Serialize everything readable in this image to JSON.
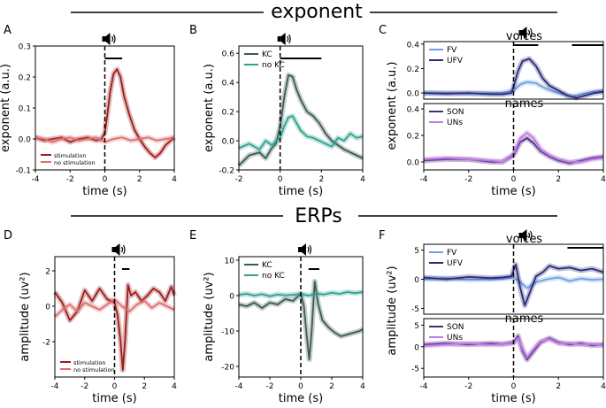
{
  "sections": {
    "top": "exponent",
    "bottom": "ERPs"
  },
  "chart_data": [
    {
      "panel": "A",
      "type": "line",
      "xlabel": "time (s)",
      "ylabel": "exponent (a.u.)",
      "xlim": [
        -4,
        4
      ],
      "ylim": [
        -0.1,
        0.3
      ],
      "xticks": [
        "-4",
        "-2",
        "0",
        "2",
        "4"
      ],
      "yticks": [
        "-0.1",
        "0.0",
        "0.1",
        "0.2",
        "0.3"
      ],
      "legend_position": "lower-left",
      "sig_bar": [
        0.0,
        1.0
      ],
      "series": [
        {
          "name": "stimulation",
          "color": "#9b1b1b",
          "x": [
            -4,
            -3.5,
            -3,
            -2.5,
            -2,
            -1.5,
            -1,
            -0.5,
            -0.2,
            0,
            0.15,
            0.3,
            0.5,
            0.7,
            0.9,
            1.1,
            1.4,
            1.7,
            2,
            2.3,
            2.6,
            2.9,
            3.2,
            3.5,
            3.8,
            4
          ],
          "y": [
            0.005,
            -0.005,
            0.0,
            0.005,
            -0.01,
            0.0,
            0.005,
            -0.005,
            0.0,
            0.02,
            0.08,
            0.15,
            0.21,
            0.225,
            0.2,
            0.14,
            0.08,
            0.03,
            0.0,
            -0.025,
            -0.045,
            -0.06,
            -0.045,
            -0.02,
            -0.005,
            0.005
          ]
        },
        {
          "name": "no stimulation",
          "color": "#de6e6e",
          "x": [
            -4,
            -3.5,
            -3,
            -2.5,
            -2,
            -1.5,
            -1,
            -0.5,
            0,
            0.5,
            1,
            1.5,
            2,
            2.5,
            3,
            3.5,
            4
          ],
          "y": [
            0.005,
            0.0,
            -0.01,
            0.0,
            0.005,
            -0.005,
            0.0,
            0.005,
            -0.01,
            0.0,
            0.005,
            -0.005,
            0.0,
            0.005,
            -0.005,
            0.0,
            0.005
          ]
        }
      ]
    },
    {
      "panel": "B",
      "type": "line",
      "xlabel": "time (s)",
      "ylabel": "exponent (a.u.)",
      "xlim": [
        -2,
        4
      ],
      "ylim": [
        -0.2,
        0.65
      ],
      "xticks": [
        "-2",
        "0",
        "2",
        "4"
      ],
      "yticks": [
        "-0.2",
        "0.0",
        "0.2",
        "0.4",
        "0.6"
      ],
      "legend_position": "top-left",
      "sig_bar": [
        0.0,
        2.0
      ],
      "series": [
        {
          "name": "KC",
          "color": "#3b5a52",
          "x": [
            -2,
            -1.5,
            -1,
            -0.7,
            -0.4,
            -0.2,
            0,
            0.2,
            0.4,
            0.6,
            0.8,
            1.0,
            1.3,
            1.6,
            1.9,
            2.2,
            2.5,
            2.8,
            3.1,
            3.4,
            3.7,
            4
          ],
          "y": [
            -0.17,
            -0.1,
            -0.08,
            -0.12,
            -0.05,
            -0.02,
            0.1,
            0.3,
            0.45,
            0.44,
            0.35,
            0.28,
            0.2,
            0.17,
            0.12,
            0.05,
            0.0,
            -0.03,
            -0.06,
            -0.08,
            -0.1,
            -0.12
          ]
        },
        {
          "name": "no KC",
          "color": "#2fa190",
          "x": [
            -2,
            -1.5,
            -1,
            -0.7,
            -0.4,
            -0.2,
            0,
            0.2,
            0.4,
            0.6,
            0.8,
            1.0,
            1.3,
            1.6,
            1.9,
            2.2,
            2.5,
            2.8,
            3.1,
            3.4,
            3.7,
            4
          ],
          "y": [
            -0.05,
            -0.02,
            -0.06,
            0.0,
            -0.03,
            0.0,
            0.02,
            0.1,
            0.16,
            0.17,
            0.12,
            0.07,
            0.03,
            0.02,
            0.0,
            -0.02,
            -0.04,
            0.02,
            0.0,
            0.05,
            0.02,
            0.03
          ]
        }
      ]
    },
    {
      "panel": "C",
      "type": "line",
      "xlabel": "time (s)",
      "ylabel": "exponent (a.u.)",
      "xlim": [
        -4,
        4
      ],
      "xticks": [
        "-4",
        "-2",
        "0",
        "2",
        "4"
      ],
      "subplots": [
        {
          "title": "voices",
          "ylim": [
            -0.05,
            0.42
          ],
          "yticks": [
            "0.0",
            "0.2",
            "0.4"
          ],
          "sig_bars": [
            [
              0.0,
              1.1
            ],
            [
              2.6,
              4.0
            ]
          ],
          "series": [
            {
              "name": "FV",
              "color": "#6fa0e6",
              "x": [
                -4,
                -3,
                -2,
                -1,
                -0.5,
                0,
                0.3,
                0.6,
                1.0,
                1.4,
                1.8,
                2.2,
                2.6,
                3.0,
                3.5,
                4
              ],
              "y": [
                0.0,
                0.0,
                -0.005,
                0.0,
                0.0,
                0.02,
                0.07,
                0.09,
                0.08,
                0.04,
                0.01,
                -0.01,
                -0.03,
                -0.01,
                0.01,
                0.02
              ]
            },
            {
              "name": "UFV",
              "color": "#2b2a7a",
              "x": [
                -4,
                -3,
                -2,
                -1,
                -0.5,
                -0.1,
                0,
                0.2,
                0.4,
                0.7,
                1.0,
                1.3,
                1.6,
                2.0,
                2.4,
                2.8,
                3.2,
                3.6,
                4
              ],
              "y": [
                0.0,
                -0.005,
                0.0,
                -0.01,
                -0.01,
                0.0,
                0.05,
                0.18,
                0.26,
                0.28,
                0.22,
                0.12,
                0.06,
                0.02,
                -0.02,
                -0.04,
                -0.02,
                0.0,
                0.01
              ]
            }
          ]
        },
        {
          "title": "names",
          "ylim": [
            -0.06,
            0.44
          ],
          "yticks": [
            "0.0",
            "0.2",
            "0.4"
          ],
          "sig_bars": [],
          "series": [
            {
              "name": "SON",
              "color": "#4b2a80",
              "x": [
                -4,
                -3,
                -2,
                -1,
                -0.5,
                0,
                0.3,
                0.6,
                0.9,
                1.2,
                1.6,
                2.0,
                2.5,
                3.0,
                3.5,
                4
              ],
              "y": [
                0.01,
                0.02,
                0.02,
                0.0,
                0.0,
                0.05,
                0.15,
                0.18,
                0.14,
                0.08,
                0.04,
                0.01,
                -0.01,
                0.01,
                0.03,
                0.04
              ]
            },
            {
              "name": "UNs",
              "color": "#c07ae0",
              "x": [
                -4,
                -3,
                -2,
                -1,
                -0.5,
                0,
                0.3,
                0.6,
                0.9,
                1.2,
                1.6,
                2.0,
                2.5,
                3.0,
                3.5,
                4
              ],
              "y": [
                0.02,
                0.03,
                0.02,
                0.01,
                0.0,
                0.06,
                0.18,
                0.22,
                0.18,
                0.1,
                0.05,
                0.02,
                0.0,
                0.0,
                0.02,
                0.03
              ]
            }
          ]
        }
      ]
    },
    {
      "panel": "D",
      "type": "line",
      "xlabel": "time (s)",
      "ylabel": "amplitude (uv²)",
      "xlim": [
        -4,
        4
      ],
      "ylim": [
        -4,
        2.8
      ],
      "xticks": [
        "-4",
        "-2",
        "0",
        "2",
        "4"
      ],
      "yticks": [
        "-2",
        "0",
        "2"
      ],
      "legend_position": "lower-left",
      "sig_bar": [
        0.5,
        1.0
      ],
      "series": [
        {
          "name": "stimulation",
          "color": "#9b1b1b",
          "x": [
            -4,
            -3.5,
            -3,
            -2.5,
            -2,
            -1.5,
            -1,
            -0.5,
            0,
            0.2,
            0.4,
            0.55,
            0.7,
            0.9,
            1.1,
            1.4,
            1.8,
            2.2,
            2.6,
            3.0,
            3.4,
            3.8,
            4
          ],
          "y": [
            0.8,
            0.2,
            -0.8,
            -0.3,
            0.9,
            0.3,
            1.0,
            0.4,
            0.2,
            -0.5,
            -2.0,
            -3.6,
            -2.0,
            1.2,
            0.6,
            0.8,
            0.3,
            0.6,
            1.0,
            0.8,
            0.3,
            1.1,
            0.6
          ]
        },
        {
          "name": "no stimulation",
          "color": "#de6e6e",
          "x": [
            -4,
            -3.5,
            -3,
            -2.5,
            -2,
            -1.5,
            -1,
            -0.5,
            0,
            0.5,
            1,
            1.5,
            2,
            2.5,
            3,
            3.5,
            4
          ],
          "y": [
            -0.6,
            -0.2,
            0.1,
            -0.3,
            0.2,
            0.0,
            -0.2,
            0.1,
            0.4,
            0.0,
            -0.3,
            0.1,
            0.3,
            -0.1,
            0.2,
            0.0,
            -0.2
          ]
        }
      ]
    },
    {
      "panel": "E",
      "type": "line",
      "xlabel": "time (s)",
      "ylabel": "amplitude (uv²)",
      "xlim": [
        -4,
        4
      ],
      "ylim": [
        -23,
        11
      ],
      "xticks": [
        "-4",
        "-2",
        "0",
        "2",
        "4"
      ],
      "yticks": [
        "-20",
        "-10",
        "0",
        "10"
      ],
      "legend_position": "top-left",
      "sig_bar": [
        0.5,
        1.2
      ],
      "series": [
        {
          "name": "KC",
          "color": "#3b5a52",
          "x": [
            -4,
            -3.5,
            -3,
            -2.5,
            -2,
            -1.5,
            -1,
            -0.5,
            0,
            0.2,
            0.4,
            0.55,
            0.7,
            0.9,
            1.1,
            1.4,
            1.8,
            2.2,
            2.6,
            3.0,
            3.4,
            3.8,
            4
          ],
          "y": [
            -2.5,
            -3.0,
            -2.0,
            -3.5,
            -2.0,
            -2.5,
            -1.0,
            -1.5,
            0.5,
            -3.0,
            -12.0,
            -18.0,
            -10.0,
            4.0,
            -2.0,
            -7.0,
            -9.0,
            -10.5,
            -11.5,
            -11.0,
            -10.5,
            -10.0,
            -9.5
          ]
        },
        {
          "name": "no KC",
          "color": "#2fa190",
          "x": [
            -4,
            -3.5,
            -3,
            -2.5,
            -2,
            -1.5,
            -1,
            -0.5,
            0,
            0.5,
            1,
            1.5,
            2,
            2.5,
            3,
            3.5,
            4
          ],
          "y": [
            0.2,
            0.5,
            0.0,
            0.4,
            -0.2,
            0.3,
            0.1,
            0.2,
            0.5,
            0.0,
            0.6,
            0.3,
            0.8,
            0.5,
            1.0,
            0.7,
            1.0
          ]
        }
      ]
    },
    {
      "panel": "F",
      "type": "line",
      "xlabel": "time (s)",
      "ylabel": "amplitude (uv²)",
      "xlim": [
        -4,
        4
      ],
      "xticks": [
        "-4",
        "-2",
        "0",
        "2",
        "4"
      ],
      "subplots": [
        {
          "title": "voices",
          "ylim": [
            -6,
            6
          ],
          "yticks": [
            "-5",
            "0",
            "5"
          ],
          "sig_bars": [
            [
              2.4,
              4.0
            ]
          ],
          "series": [
            {
              "name": "FV",
              "color": "#6fa0e6",
              "x": [
                -4,
                -3,
                -2,
                -1,
                -0.5,
                0,
                0.3,
                0.6,
                1.0,
                1.5,
                2.0,
                2.5,
                3.0,
                3.5,
                4
              ],
              "y": [
                0.0,
                0.2,
                -0.1,
                0.0,
                0.1,
                0.3,
                -0.5,
                -1.5,
                -0.5,
                0.0,
                0.3,
                -0.3,
                0.1,
                -0.1,
                0.0
              ]
            },
            {
              "name": "UFV",
              "color": "#2b2a7a",
              "x": [
                -4,
                -3,
                -2,
                -1,
                -0.5,
                -0.1,
                0.1,
                0.3,
                0.5,
                0.7,
                1.0,
                1.3,
                1.6,
                2.0,
                2.5,
                3.0,
                3.5,
                4
              ],
              "y": [
                0.3,
                0.0,
                0.4,
                0.2,
                0.3,
                0.5,
                2.5,
                -1.5,
                -4.5,
                -2.5,
                0.5,
                1.2,
                2.3,
                1.8,
                2.0,
                1.5,
                1.8,
                1.2
              ]
            }
          ]
        },
        {
          "title": "names",
          "ylim": [
            -7,
            6.5
          ],
          "yticks": [
            "-5",
            "0",
            "5"
          ],
          "sig_bars": [],
          "series": [
            {
              "name": "SON",
              "color": "#4b2a80",
              "x": [
                -4,
                -3,
                -2,
                -1,
                -0.5,
                0,
                0.2,
                0.4,
                0.6,
                0.9,
                1.2,
                1.6,
                2.0,
                2.5,
                3.0,
                3.5,
                4
              ],
              "y": [
                0.5,
                0.8,
                0.5,
                0.8,
                0.6,
                1.0,
                2.5,
                -1.0,
                -3.0,
                -1.0,
                1.0,
                2.0,
                1.0,
                0.5,
                0.8,
                0.3,
                0.5
              ]
            },
            {
              "name": "UNs",
              "color": "#c07ae0",
              "x": [
                -4,
                -3,
                -2,
                -1,
                -0.5,
                0,
                0.2,
                0.4,
                0.6,
                0.9,
                1.2,
                1.6,
                2.0,
                2.5,
                3.0,
                3.5,
                4
              ],
              "y": [
                0.2,
                0.5,
                0.8,
                0.4,
                0.6,
                0.8,
                2.0,
                -0.5,
                -2.5,
                -0.5,
                1.2,
                1.8,
                0.8,
                0.8,
                0.5,
                0.6,
                0.3
              ]
            }
          ]
        }
      ]
    }
  ]
}
